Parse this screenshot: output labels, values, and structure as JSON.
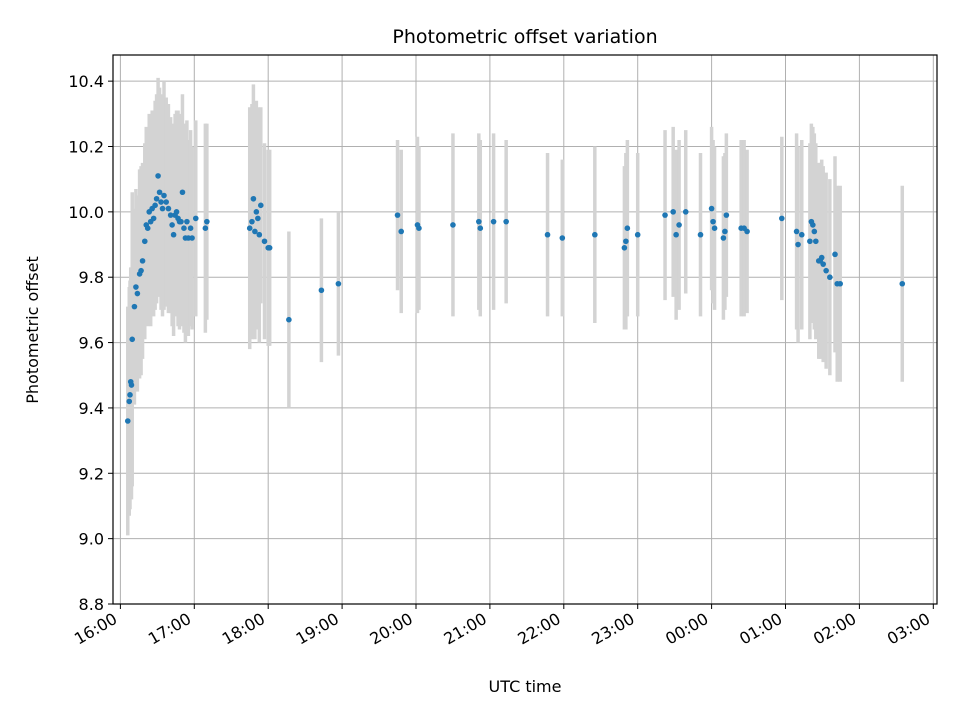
{
  "chart_data": {
    "type": "scatter",
    "title": "Photometric offset variation",
    "xlabel": "UTC time",
    "ylabel": "Photometric offset",
    "x_unit": "hours (UTC, continuing past midnight)",
    "xlim": [
      15.9,
      27.05
    ],
    "ylim": [
      8.8,
      10.48
    ],
    "x_ticks": [
      {
        "value": 16,
        "label": "16:00"
      },
      {
        "value": 17,
        "label": "17:00"
      },
      {
        "value": 18,
        "label": "18:00"
      },
      {
        "value": 19,
        "label": "19:00"
      },
      {
        "value": 20,
        "label": "20:00"
      },
      {
        "value": 21,
        "label": "21:00"
      },
      {
        "value": 22,
        "label": "22:00"
      },
      {
        "value": 23,
        "label": "23:00"
      },
      {
        "value": 24,
        "label": "00:00"
      },
      {
        "value": 25,
        "label": "01:00"
      },
      {
        "value": 26,
        "label": "02:00"
      },
      {
        "value": 27,
        "label": "03:00"
      }
    ],
    "y_ticks": [
      {
        "value": 8.8,
        "label": "8.8"
      },
      {
        "value": 9.0,
        "label": "9.0"
      },
      {
        "value": 9.2,
        "label": "9.2"
      },
      {
        "value": 9.4,
        "label": "9.4"
      },
      {
        "value": 9.6,
        "label": "9.6"
      },
      {
        "value": 9.8,
        "label": "9.8"
      },
      {
        "value": 10.0,
        "label": "10.0"
      },
      {
        "value": 10.2,
        "label": "10.2"
      },
      {
        "value": 10.4,
        "label": "10.4"
      }
    ],
    "grid": true,
    "colors": {
      "points": "#1f77b4",
      "errorbars": "#d3d3d3"
    },
    "points": [
      [
        16.1,
        9.36,
        0.35
      ],
      [
        16.12,
        9.42,
        0.35
      ],
      [
        16.13,
        9.44,
        0.35
      ],
      [
        16.14,
        9.48,
        0.35
      ],
      [
        16.15,
        9.47,
        0.35
      ],
      [
        16.16,
        9.61,
        0.45
      ],
      [
        16.19,
        9.71,
        0.3
      ],
      [
        16.21,
        9.77,
        0.3
      ],
      [
        16.23,
        9.75,
        0.3
      ],
      [
        16.26,
        9.81,
        0.32
      ],
      [
        16.28,
        9.82,
        0.32
      ],
      [
        16.3,
        9.85,
        0.3
      ],
      [
        16.33,
        9.91,
        0.3
      ],
      [
        16.35,
        9.96,
        0.3
      ],
      [
        16.37,
        9.95,
        0.3
      ],
      [
        16.39,
        10.0,
        0.3
      ],
      [
        16.41,
        9.97,
        0.32
      ],
      [
        16.43,
        10.01,
        0.3
      ],
      [
        16.45,
        9.98,
        0.3
      ],
      [
        16.47,
        10.02,
        0.32
      ],
      [
        16.49,
        10.04,
        0.32
      ],
      [
        16.51,
        10.11,
        0.3
      ],
      [
        16.53,
        10.06,
        0.32
      ],
      [
        16.55,
        10.03,
        0.33
      ],
      [
        16.57,
        10.01,
        0.33
      ],
      [
        16.59,
        10.05,
        0.35
      ],
      [
        16.62,
        10.03,
        0.32
      ],
      [
        16.65,
        10.01,
        0.32
      ],
      [
        16.68,
        9.99,
        0.3
      ],
      [
        16.7,
        9.96,
        0.31
      ],
      [
        16.72,
        9.93,
        0.31
      ],
      [
        16.74,
        9.99,
        0.31
      ],
      [
        16.76,
        10.0,
        0.31
      ],
      [
        16.78,
        9.98,
        0.33
      ],
      [
        16.8,
        9.97,
        0.33
      ],
      [
        16.82,
        9.97,
        0.32
      ],
      [
        16.84,
        10.06,
        0.3
      ],
      [
        16.86,
        9.95,
        0.32
      ],
      [
        16.88,
        9.92,
        0.32
      ],
      [
        16.9,
        9.97,
        0.31
      ],
      [
        16.92,
        9.92,
        0.3
      ],
      [
        16.95,
        9.95,
        0.3
      ],
      [
        16.97,
        9.92,
        0.28
      ],
      [
        17.02,
        9.98,
        0.3
      ],
      [
        17.15,
        9.95,
        0.32
      ],
      [
        17.17,
        9.97,
        0.3
      ],
      [
        17.75,
        9.95,
        0.37
      ],
      [
        17.78,
        9.97,
        0.36
      ],
      [
        17.8,
        10.04,
        0.35
      ],
      [
        17.82,
        9.94,
        0.33
      ],
      [
        17.84,
        10.0,
        0.34
      ],
      [
        17.86,
        9.98,
        0.34
      ],
      [
        17.88,
        9.93,
        0.33
      ],
      [
        17.9,
        10.02,
        0.3
      ],
      [
        17.95,
        9.91,
        0.3
      ],
      [
        18.0,
        9.89,
        0.3
      ],
      [
        18.02,
        9.89,
        0.3
      ],
      [
        18.28,
        9.67,
        0.27
      ],
      [
        18.72,
        9.76,
        0.22
      ],
      [
        18.95,
        9.78,
        0.22
      ],
      [
        19.75,
        9.99,
        0.23
      ],
      [
        19.8,
        9.94,
        0.25
      ],
      [
        20.02,
        9.96,
        0.27
      ],
      [
        20.04,
        9.95,
        0.25
      ],
      [
        20.5,
        9.96,
        0.28
      ],
      [
        20.85,
        9.97,
        0.27
      ],
      [
        20.87,
        9.95,
        0.27
      ],
      [
        21.05,
        9.97,
        0.27
      ],
      [
        21.22,
        9.97,
        0.25
      ],
      [
        21.78,
        9.93,
        0.25
      ],
      [
        21.98,
        9.92,
        0.24
      ],
      [
        22.42,
        9.93,
        0.27
      ],
      [
        22.82,
        9.89,
        0.25
      ],
      [
        22.84,
        9.91,
        0.27
      ],
      [
        22.86,
        9.95,
        0.27
      ],
      [
        23.0,
        9.93,
        0.25
      ],
      [
        23.37,
        9.99,
        0.26
      ],
      [
        23.48,
        10.0,
        0.26
      ],
      [
        23.52,
        9.93,
        0.26
      ],
      [
        23.56,
        9.96,
        0.26
      ],
      [
        23.65,
        10.0,
        0.25
      ],
      [
        23.85,
        9.93,
        0.25
      ],
      [
        24.0,
        10.01,
        0.25
      ],
      [
        24.02,
        9.97,
        0.25
      ],
      [
        24.04,
        9.95,
        0.25
      ],
      [
        24.16,
        9.92,
        0.25
      ],
      [
        24.18,
        9.94,
        0.24
      ],
      [
        24.2,
        9.99,
        0.25
      ],
      [
        24.4,
        9.95,
        0.27
      ],
      [
        24.44,
        9.95,
        0.27
      ],
      [
        24.48,
        9.94,
        0.25
      ],
      [
        24.95,
        9.98,
        0.25
      ],
      [
        25.15,
        9.94,
        0.3
      ],
      [
        25.17,
        9.9,
        0.3
      ],
      [
        25.22,
        9.93,
        0.29
      ],
      [
        25.33,
        9.91,
        0.3
      ],
      [
        25.35,
        9.97,
        0.3
      ],
      [
        25.37,
        9.96,
        0.3
      ],
      [
        25.39,
        9.94,
        0.3
      ],
      [
        25.41,
        9.91,
        0.3
      ],
      [
        25.45,
        9.85,
        0.3
      ],
      [
        25.47,
        9.85,
        0.3
      ],
      [
        25.49,
        9.86,
        0.3
      ],
      [
        25.51,
        9.84,
        0.3
      ],
      [
        25.55,
        9.82,
        0.3
      ],
      [
        25.6,
        9.8,
        0.3
      ],
      [
        25.67,
        9.87,
        0.3
      ],
      [
        25.7,
        9.78,
        0.3
      ],
      [
        25.74,
        9.78,
        0.3
      ],
      [
        26.58,
        9.78,
        0.3
      ]
    ]
  }
}
